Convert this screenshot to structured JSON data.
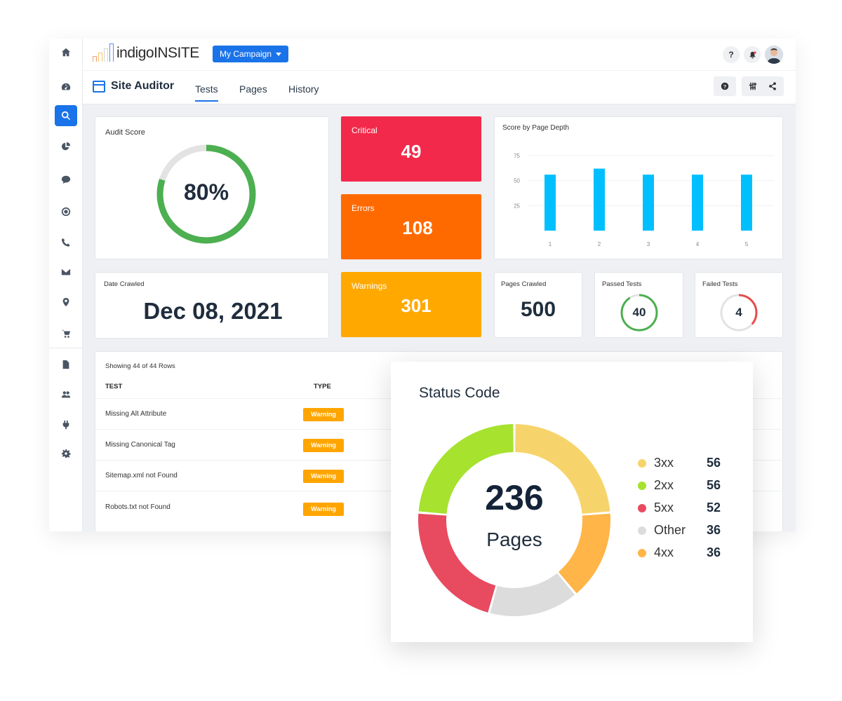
{
  "app": {
    "logo_text": "indigoINSITE",
    "campaign_label": "My Campaign"
  },
  "header": {
    "help_label": "?"
  },
  "subheader": {
    "title": "Site Auditor",
    "tabs": [
      {
        "label": "Tests"
      },
      {
        "label": "Pages"
      },
      {
        "label": "History"
      }
    ]
  },
  "audit_score": {
    "label": "Audit Score",
    "value_text": "80%",
    "value": 80
  },
  "stats": {
    "critical": {
      "label": "Critical",
      "value": "49",
      "color": "#f2294a"
    },
    "errors": {
      "label": "Errors",
      "value": "108",
      "color": "#ff6a00"
    },
    "warnings": {
      "label": "Warnings",
      "value": "301",
      "color": "#ffa900"
    }
  },
  "date_crawled": {
    "label": "Date Crawled",
    "value": "Dec 08, 2021"
  },
  "pages_crawled": {
    "label": "Pages Crawled",
    "value": "500"
  },
  "passed_tests": {
    "label": "Passed Tests",
    "value": "40",
    "color": "#4caf50"
  },
  "failed_tests": {
    "label": "Failed Tests",
    "value": "4",
    "color": "#e84c4c"
  },
  "depth_chart": {
    "title": "Score by Page Depth",
    "chart_data": {
      "type": "bar",
      "categories": [
        "1",
        "2",
        "3",
        "4",
        "5"
      ],
      "values": [
        56,
        62,
        56,
        56,
        56
      ],
      "yticks": [
        "75",
        "50",
        "25"
      ],
      "ylim": [
        0,
        100
      ],
      "bar_color": "#00bfff"
    }
  },
  "table": {
    "showing": "Showing 44 of 44 Rows",
    "col_test": "TEST",
    "col_type": "TYPE",
    "rows": [
      {
        "test": "Missing Alt Attribute",
        "type": "Warning"
      },
      {
        "test": "Missing Canonical Tag",
        "type": "Warning"
      },
      {
        "test": "Sitemap.xml not Found",
        "type": "Warning"
      },
      {
        "test": "Robots.txt not Found",
        "type": "Warning"
      }
    ]
  },
  "status_code": {
    "title": "Status Code",
    "total": "236",
    "total_label": "Pages",
    "chart_data": {
      "type": "pie",
      "series": [
        {
          "name": "3xx",
          "value": 56,
          "color": "#f7d46b"
        },
        {
          "name": "4xx",
          "value": 36,
          "color": "#ffb547"
        },
        {
          "name": "Other",
          "value": 36,
          "color": "#dcdcdc"
        },
        {
          "name": "5xx",
          "value": 52,
          "color": "#e84a5f"
        },
        {
          "name": "2xx",
          "value": 56,
          "color": "#a6e22e"
        }
      ]
    },
    "legend": [
      {
        "name": "3xx",
        "value": "56",
        "color": "#f7d46b"
      },
      {
        "name": "2xx",
        "value": "56",
        "color": "#a6e22e"
      },
      {
        "name": "5xx",
        "value": "52",
        "color": "#e84a5f"
      },
      {
        "name": "Other",
        "value": "36",
        "color": "#dcdcdc"
      },
      {
        "name": "4xx",
        "value": "36",
        "color": "#ffb547"
      }
    ]
  }
}
